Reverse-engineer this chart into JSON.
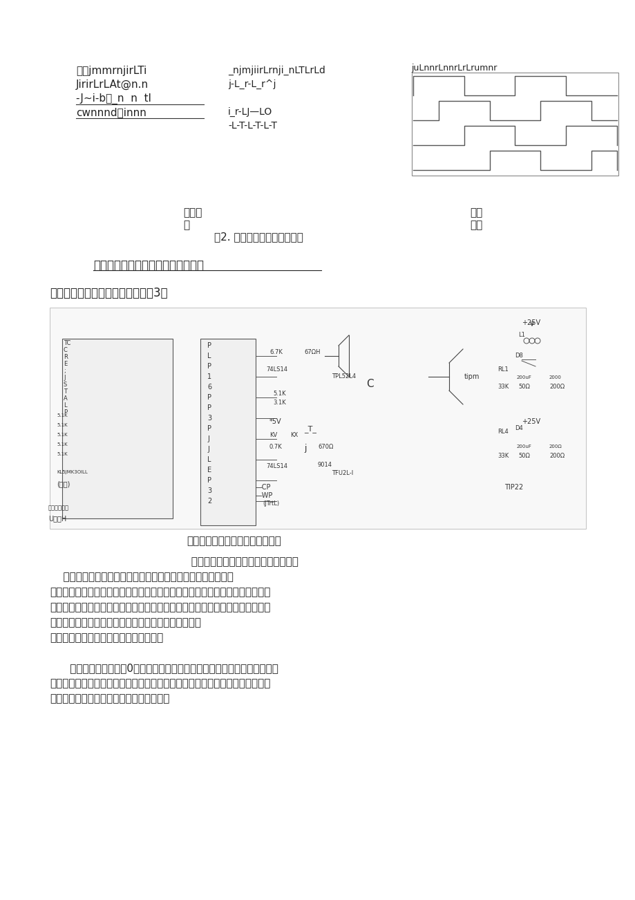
{
  "bg_color": "#ffffff",
  "page_width": 9.2,
  "page_height": 13.02,
  "top_left_text_lines": [
    "别中jmmrnjirLTi",
    "JirirLrLAt@n.n",
    "-J~i-b相_n  n  tl",
    "cwnnnd相innn"
  ],
  "top_mid_text_lines": [
    "_njmjiirLrnji_nLTLrLd",
    "j-L_r-L_r^j",
    "",
    "i_r-LJ—LO",
    "-L-T-L-T-L-T"
  ],
  "top_right_label": "juLnnrLnnrLrLrumnr",
  "caption_fig2": "图2. 步进电机工作时序波形图",
  "label_single": "单四拍",
  "label_single2": "拍",
  "label_double": "双四",
  "label_double2": "拍拍",
  "section_title": "基于的步进电机驱动器系统电路原理",
  "circuit_intro": "步进电机驱动器系统电路原理如图3：",
  "circuit_caption": "图步进电机驱动器系统电路原理图",
  "para1_line1": "                                          将控制脉冲从口的输出，经反相后进入",
  "para1_line2": "    ，经放大后控制光电开关，光电隔离后，由功率管将脉冲信号",
  "para1_line3": "进行电压和电流放大，驱动步进电机的各相绕组。使步进电机随着不同的脉冲信",
  "para1_line4": "号分别作正转、反转、加速、减速和停止等动作。图中为步进电机的一相绕组。",
  "para1_line5": "选用频率的晶振，选用较高晶振的目的是为了在方式下",
  "para1_line6": "尽量减小对上位机脉冲信号周期的影响。",
  "para2_line1": "      图中的为绕组内阻，0电阻是一外接电阻，起限流作用，也是一个改善回路",
  "para2_line2": "时间常数的元件。为续流二极管，使电机绕组产生的反电动势通过续流二极管（",
  "para2_line3": "）而衰减掉，从而保护了功率管不受损坏。"
}
